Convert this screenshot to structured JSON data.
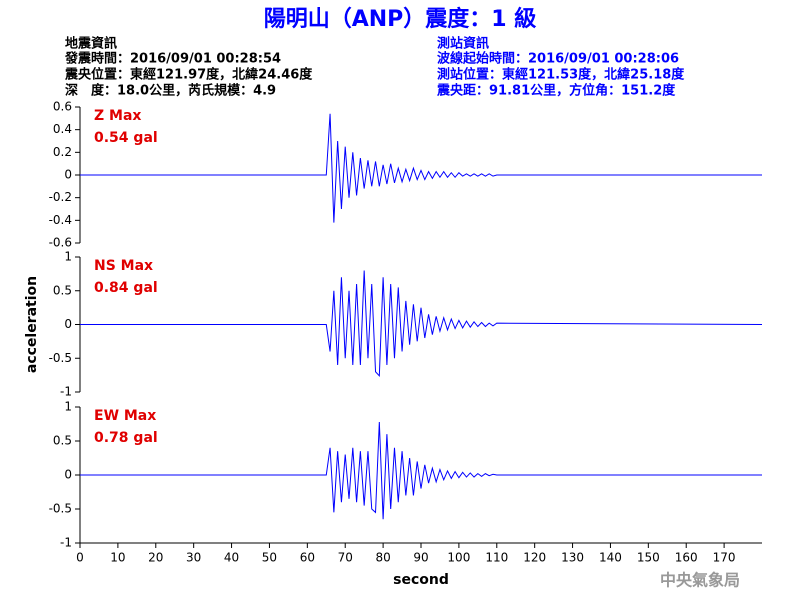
{
  "header": {
    "title": "陽明山（ANP）震度：1 級",
    "left": [
      "地震資訊",
      "發震時間：2016/09/01 00:28:54",
      "震央位置：東經121.97度，北緯24.46度",
      "深　度：18.0公里，芮氏規模：4.9"
    ],
    "right": [
      "測站資訊",
      "波線起始時間：2016/09/01 00:28:06",
      "測站位置：東經121.53度，北緯25.18度",
      "震央距：91.81公里，方位角：151.2度"
    ]
  },
  "watermark": "中央氣象局",
  "chart_data": [
    {
      "type": "line",
      "label": "Z Max",
      "max_label": "0.54 gal",
      "xlim": [
        0,
        180
      ],
      "ylim": [
        -0.6,
        0.6
      ],
      "yticks": [
        0.6,
        0.4,
        0.2,
        0,
        -0.2,
        -0.4,
        -0.6
      ],
      "x": [
        0,
        65,
        66,
        67,
        68,
        69,
        70,
        71,
        72,
        73,
        74,
        75,
        76,
        77,
        78,
        79,
        80,
        81,
        82,
        83,
        84,
        85,
        86,
        87,
        88,
        89,
        90,
        91,
        92,
        93,
        94,
        95,
        96,
        97,
        98,
        99,
        100,
        101,
        102,
        103,
        104,
        105,
        106,
        107,
        108,
        109,
        110,
        180
      ],
      "series": [
        {
          "color": "#0000ff",
          "values": [
            0,
            0,
            0.54,
            -0.42,
            0.3,
            -0.3,
            0.25,
            -0.2,
            0.2,
            -0.18,
            0.15,
            -0.12,
            0.13,
            -0.1,
            0.12,
            -0.1,
            0.09,
            -0.08,
            0.1,
            -0.07,
            0.06,
            -0.06,
            0.05,
            -0.05,
            0.06,
            -0.04,
            0.04,
            -0.04,
            0.03,
            -0.03,
            0.03,
            -0.02,
            0.03,
            -0.02,
            0.02,
            -0.02,
            0.02,
            -0.01,
            0.01,
            -0.01,
            0.01,
            -0.01,
            0.01,
            -0.01,
            0.01,
            -0.01,
            0,
            0
          ]
        }
      ]
    },
    {
      "type": "line",
      "label": "NS Max",
      "max_label": "0.84 gal",
      "y_label": "acceleration",
      "xlim": [
        0,
        180
      ],
      "ylim": [
        -1,
        1
      ],
      "yticks": [
        1,
        0.5,
        0,
        -0.5,
        -1
      ],
      "x": [
        0,
        65,
        66,
        67,
        68,
        69,
        70,
        71,
        72,
        73,
        74,
        75,
        76,
        77,
        78,
        79,
        80,
        81,
        82,
        83,
        84,
        85,
        86,
        87,
        88,
        89,
        90,
        91,
        92,
        93,
        94,
        95,
        96,
        97,
        98,
        99,
        100,
        101,
        102,
        103,
        104,
        105,
        106,
        107,
        108,
        109,
        110,
        180
      ],
      "series": [
        {
          "color": "#0000ff",
          "values": [
            0,
            0,
            -0.4,
            0.5,
            -0.6,
            0.7,
            -0.5,
            0.5,
            -0.6,
            0.6,
            -0.6,
            0.8,
            -0.5,
            0.6,
            -0.7,
            -0.76,
            0.7,
            -0.6,
            0.6,
            -0.5,
            0.55,
            -0.4,
            0.35,
            -0.3,
            0.3,
            -0.25,
            0.25,
            -0.2,
            0.15,
            -0.15,
            0.12,
            -0.1,
            0.1,
            -0.08,
            0.08,
            -0.06,
            0.06,
            -0.05,
            0.05,
            -0.04,
            0.04,
            -0.03,
            0.03,
            -0.03,
            0.02,
            -0.02,
            0.02,
            0
          ]
        }
      ]
    },
    {
      "type": "line",
      "label": "EW Max",
      "max_label": "0.78 gal",
      "x_label": "second",
      "xlim": [
        0,
        180
      ],
      "ylim": [
        -1,
        1
      ],
      "yticks": [
        1,
        0.5,
        0,
        -0.5,
        -1
      ],
      "xticks": [
        0,
        10,
        20,
        30,
        40,
        50,
        60,
        70,
        80,
        90,
        100,
        110,
        120,
        130,
        140,
        150,
        160,
        170
      ],
      "x": [
        0,
        65,
        66,
        67,
        68,
        69,
        70,
        71,
        72,
        73,
        74,
        75,
        76,
        77,
        78,
        79,
        80,
        81,
        82,
        83,
        84,
        85,
        86,
        87,
        88,
        89,
        90,
        91,
        92,
        93,
        94,
        95,
        96,
        97,
        98,
        99,
        100,
        101,
        102,
        103,
        104,
        105,
        106,
        107,
        108,
        109,
        110,
        180
      ],
      "series": [
        {
          "color": "#0000ff",
          "values": [
            0,
            0,
            0.4,
            -0.55,
            0.35,
            -0.4,
            0.3,
            -0.35,
            0.4,
            -0.4,
            0.35,
            -0.45,
            0.35,
            -0.5,
            -0.55,
            0.78,
            -0.65,
            0.6,
            -0.5,
            0.4,
            -0.4,
            0.35,
            -0.3,
            0.25,
            -0.3,
            0.2,
            -0.2,
            0.15,
            -0.12,
            0.1,
            -0.1,
            0.08,
            -0.07,
            0.06,
            -0.05,
            0.05,
            -0.04,
            0.04,
            -0.03,
            0.03,
            -0.03,
            0.02,
            -0.02,
            0.02,
            -0.01,
            0.01,
            0,
            0
          ]
        }
      ]
    }
  ]
}
